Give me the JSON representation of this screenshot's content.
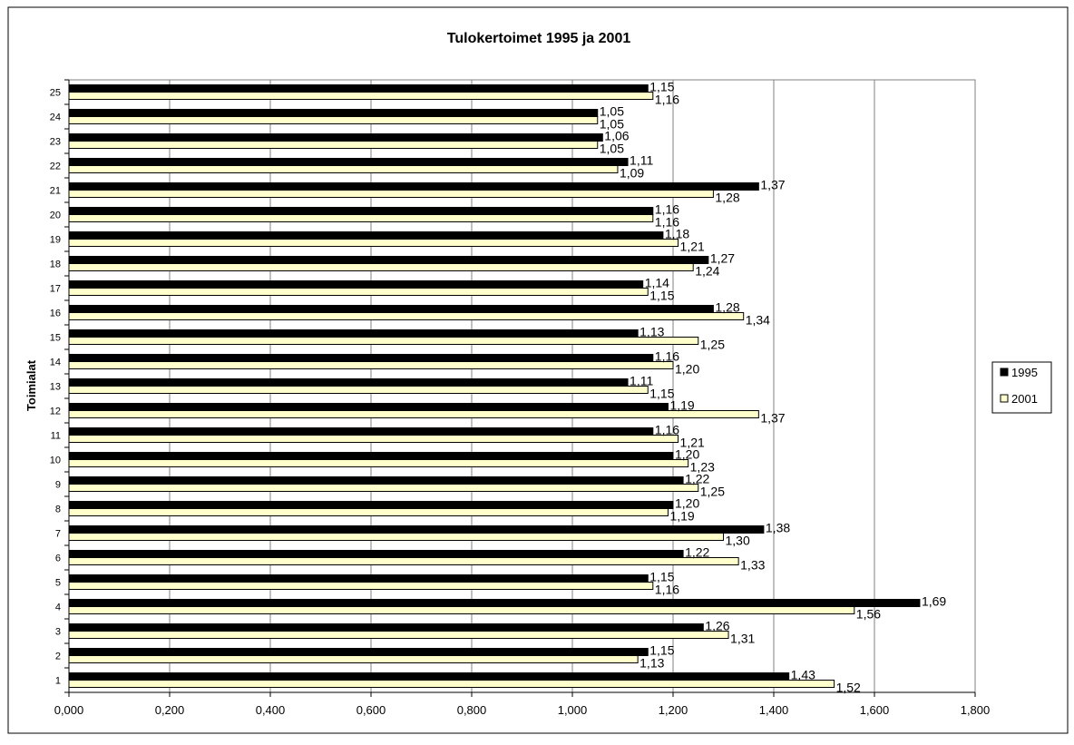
{
  "chart_data": {
    "type": "bar",
    "orientation": "horizontal",
    "title": "Tulokertoimet 1995 ja 2001",
    "ylabel": "Toimialat",
    "xlabel": "",
    "xlim": [
      0,
      1.8
    ],
    "xticks": [
      "0,000",
      "0,200",
      "0,400",
      "0,600",
      "0,800",
      "1,000",
      "1,200",
      "1,400",
      "1,600",
      "1,800"
    ],
    "xtick_values": [
      0,
      0.2,
      0.4,
      0.6,
      0.8,
      1.0,
      1.2,
      1.4,
      1.6,
      1.8
    ],
    "grid": "vertical gridlines at major ticks",
    "legend_position": "right",
    "categories": [
      "1",
      "2",
      "3",
      "4",
      "5",
      "6",
      "7",
      "8",
      "9",
      "10",
      "11",
      "12",
      "13",
      "14",
      "15",
      "16",
      "17",
      "18",
      "19",
      "20",
      "21",
      "22",
      "23",
      "24",
      "25"
    ],
    "series": [
      {
        "name": "1995",
        "color": "#000000",
        "values": [
          1.43,
          1.15,
          1.26,
          1.69,
          1.15,
          1.22,
          1.38,
          1.2,
          1.22,
          1.2,
          1.16,
          1.19,
          1.11,
          1.16,
          1.13,
          1.28,
          1.14,
          1.27,
          1.18,
          1.16,
          1.37,
          1.11,
          1.06,
          1.05,
          1.15
        ],
        "labels": [
          "1,43",
          "1,15",
          "1,26",
          "1,69",
          "1,15",
          "1,22",
          "1,38",
          "1,20",
          "1,22",
          "1,20",
          "1,16",
          "1,19",
          "1,11",
          "1,16",
          "1,13",
          "1,28",
          "1,14",
          "1,27",
          "1,18",
          "1,16",
          "1,37",
          "1,11",
          "1,06",
          "1,05",
          "1,15"
        ]
      },
      {
        "name": "2001",
        "color": "#ffffcc",
        "values": [
          1.52,
          1.13,
          1.31,
          1.56,
          1.16,
          1.33,
          1.3,
          1.19,
          1.25,
          1.23,
          1.21,
          1.37,
          1.15,
          1.2,
          1.25,
          1.34,
          1.15,
          1.24,
          1.21,
          1.16,
          1.28,
          1.09,
          1.05,
          1.05,
          1.16
        ],
        "labels": [
          "1,52",
          "1,13",
          "1,31",
          "1,56",
          "1,16",
          "1,33",
          "1,30",
          "1,19",
          "1,25",
          "1,23",
          "1,21",
          "1,37",
          "1,15",
          "1,20",
          "1,25",
          "1,34",
          "1,15",
          "1,24",
          "1,21",
          "1,16",
          "1,28",
          "1,09",
          "1,05",
          "1,05",
          "1,16"
        ]
      }
    ]
  }
}
